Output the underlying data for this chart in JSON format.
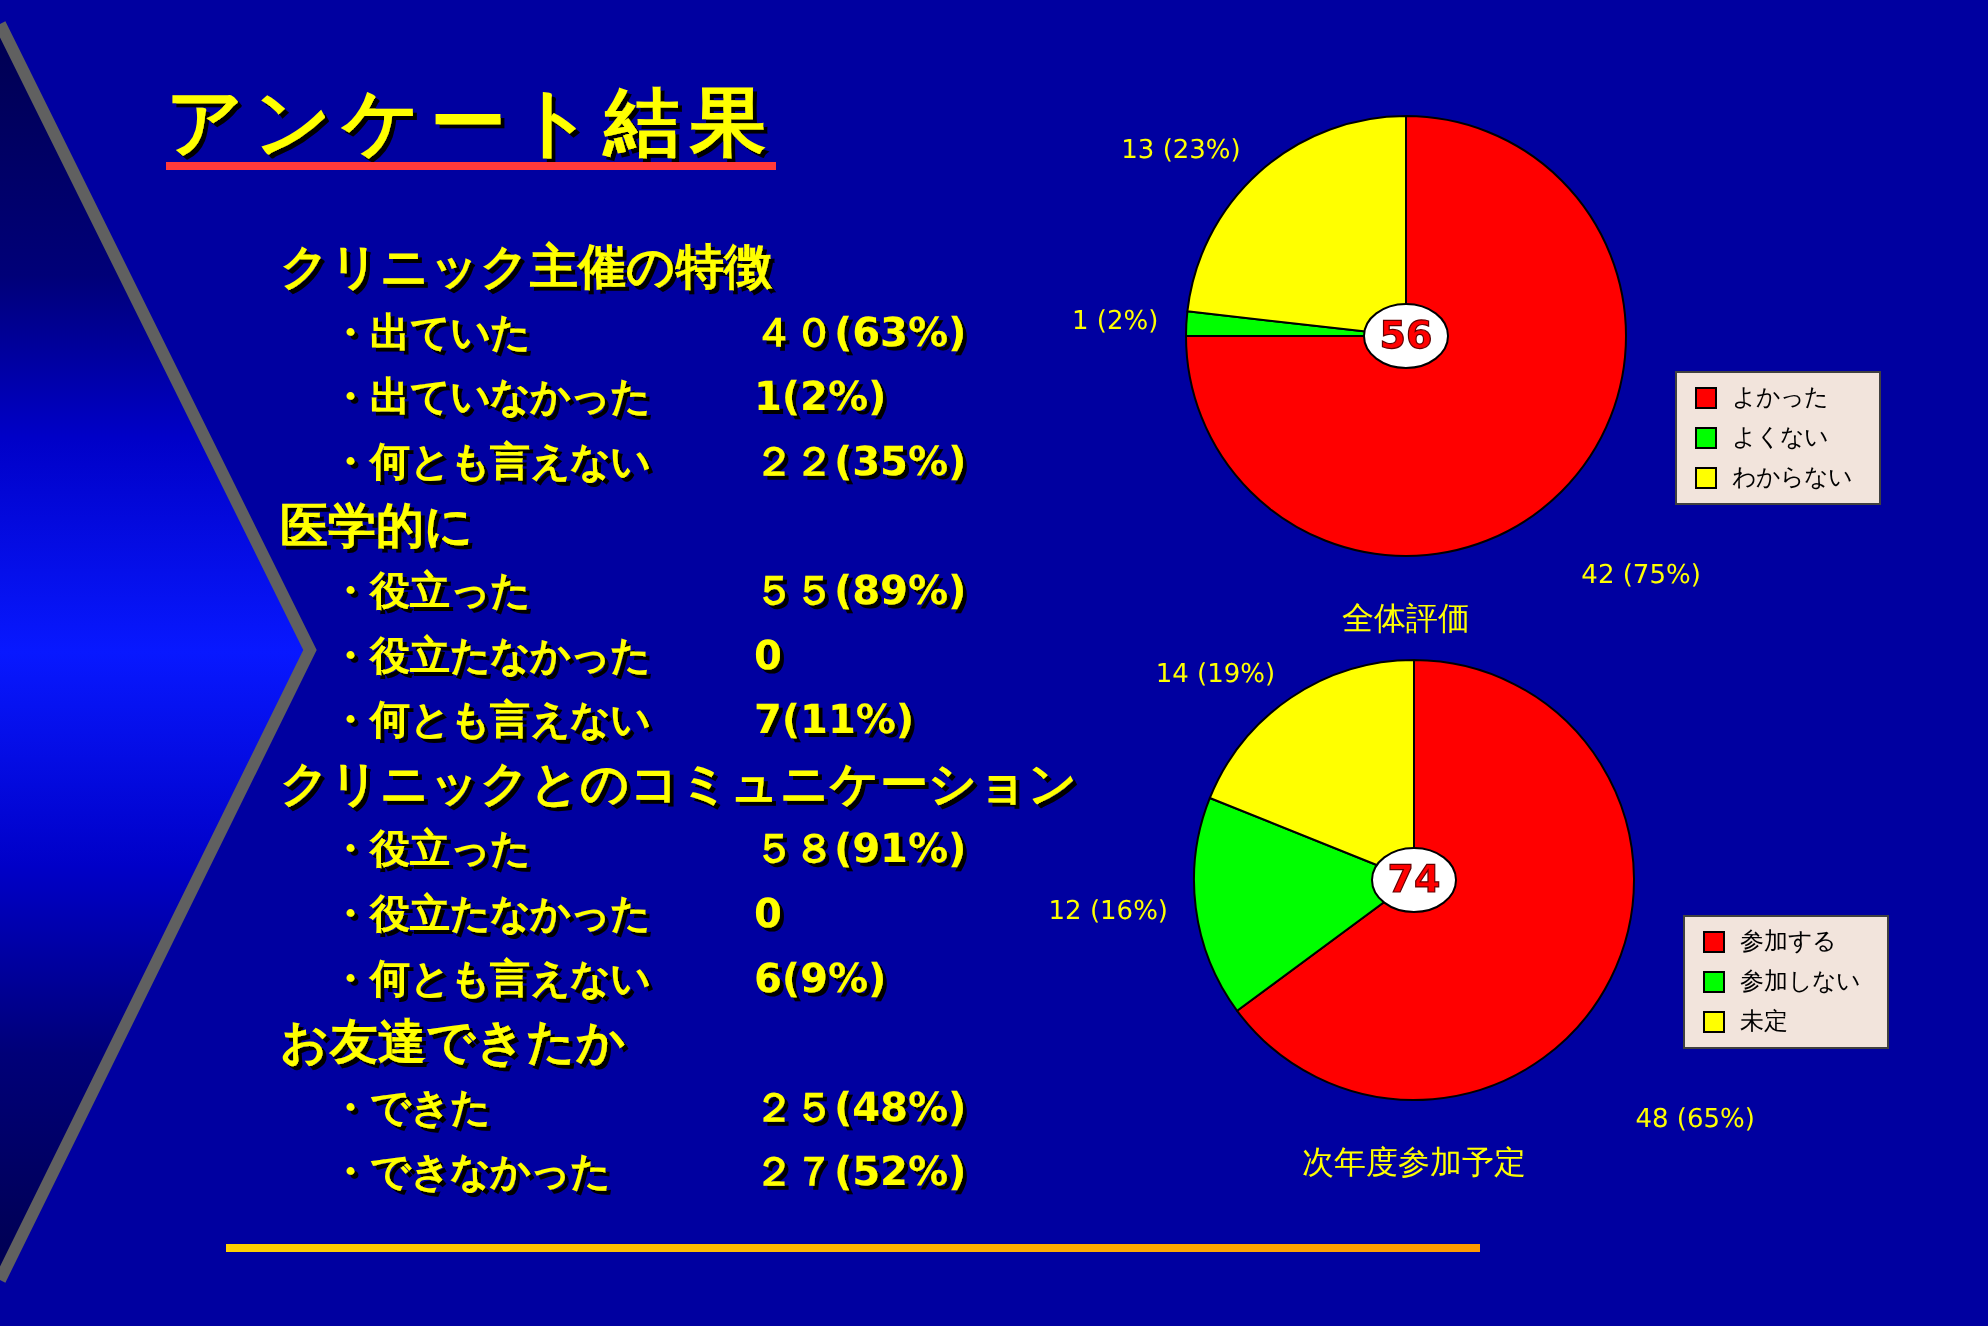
{
  "chart_data": [
    {
      "type": "other",
      "title": "アンケート結果"
    },
    {
      "type": "other",
      "title": "クリニック主催の特徴",
      "categories": [
        "・出ていた",
        "・出ていなかった",
        "・何とも言えない"
      ],
      "value_labels": [
        "４０(63%)",
        "1(2%)",
        "２２(35%)"
      ]
    },
    {
      "type": "other",
      "title": "医学的に",
      "categories": [
        "・役立った",
        "・役立たなかった",
        "・何とも言えない"
      ],
      "value_labels": [
        "５５(89%)",
        "0",
        "7(11%)"
      ]
    },
    {
      "type": "other",
      "title": "クリニックとのコミュニケーション",
      "categories": [
        "・役立った",
        "・役立たなかった",
        "・何とも言えない"
      ],
      "value_labels": [
        "５８(91%)",
        "0",
        "6(9%)"
      ]
    },
    {
      "type": "other",
      "title": "お友達できたか",
      "categories": [
        "・できた",
        "・できなかった"
      ],
      "value_labels": [
        "２５(48%)",
        "２７(52%)"
      ]
    },
    {
      "type": "pie",
      "title": "全体評価",
      "categories": [
        "よかった",
        "よくない",
        "わからない"
      ],
      "values": [
        42,
        1,
        13
      ],
      "colors": [
        "#ff0000",
        "#00ff00",
        "#ffff00"
      ],
      "value_labels": [
        "42 (75%)",
        "1 (2%)",
        "13 (23%)"
      ],
      "annotations": [
        "56"
      ],
      "legend": "bottom right"
    },
    {
      "type": "pie",
      "title": "次年度参加予定",
      "categories": [
        "参加する",
        "参加しない",
        "未定"
      ],
      "values": [
        48,
        12,
        14
      ],
      "colors": [
        "#ff0000",
        "#00ff00",
        "#ffff00"
      ],
      "value_labels": [
        "48 (65%)",
        "12 (16%)",
        "14 (19%)"
      ],
      "annotations": [
        "74"
      ],
      "legend": "bottom right"
    }
  ]
}
